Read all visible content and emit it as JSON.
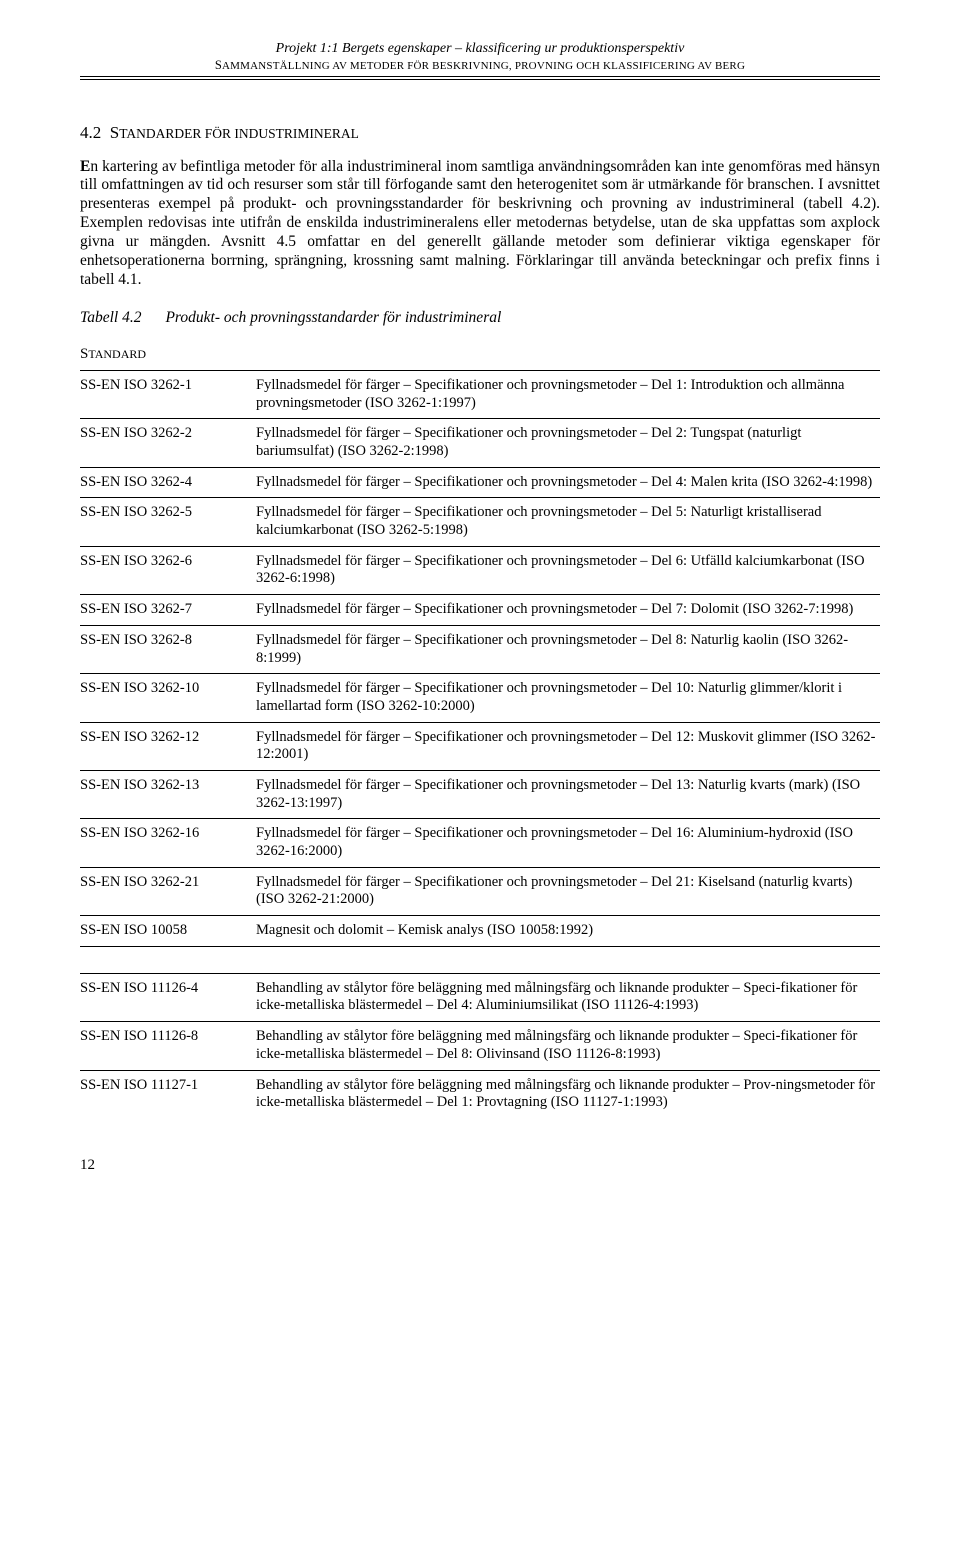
{
  "header": {
    "title": "Projekt 1:1 Bergets egenskaper – klassificering ur produktionsperspektiv",
    "subtitle_prefix": "S",
    "subtitle_rest": "AMMANSTÄLLNING AV METODER FÖR BESKRIVNING, PROVNING OCH KLASSIFICERING AV BERG"
  },
  "section": {
    "number": "4.2",
    "title_prefix": "S",
    "title_rest": "TANDARDER FÖR INDUSTRIMINERAL"
  },
  "paragraph": {
    "lead": "E",
    "text": "n kartering av befintliga metoder för alla industrimineral inom samtliga användningsområden kan inte genomföras med hänsyn till omfattningen av tid och resurser som står till förfogande samt den heterogenitet som är utmärkande för branschen. I avsnittet presenteras exempel på produkt- och provningsstandarder för beskrivning och provning av industrimineral (tabell 4.2). Exemplen redovisas inte utifrån de enskilda industrimineralens eller metodernas betydelse, utan de ska uppfattas som axplock givna ur mängden. Avsnitt 4.5 omfattar en del generellt gällande metoder som definierar viktiga egenskaper för enhetsoperationerna borrning, sprängning, krossning samt malning. Förklaringar till använda beteckningar och prefix finns i tabell 4.1."
  },
  "table_caption": {
    "label": "Tabell 4.2",
    "text": "Produkt- och provningsstandarder för industrimineral"
  },
  "standard_heading_prefix": "S",
  "standard_heading_rest": "TANDARD",
  "standards_group1": [
    {
      "code": "SS-EN ISO 3262-1",
      "desc": "Fyllnadsmedel för färger – Specifikationer och provningsmetoder – Del 1: Introduktion och allmänna provningsmetoder (ISO 3262-1:1997)"
    },
    {
      "code": "SS-EN ISO 3262-2",
      "desc": "Fyllnadsmedel för färger – Specifikationer och provningsmetoder – Del 2: Tungspat (naturligt bariumsulfat) (ISO 3262-2:1998)"
    },
    {
      "code": "SS-EN ISO 3262-4",
      "desc": "Fyllnadsmedel för färger – Specifikationer och provningsmetoder – Del 4: Malen krita (ISO 3262-4:1998)"
    },
    {
      "code": "SS-EN ISO 3262-5",
      "desc": "Fyllnadsmedel för färger – Specifikationer och provningsmetoder – Del 5: Naturligt kristalliserad kalciumkarbonat (ISO 3262-5:1998)"
    },
    {
      "code": "SS-EN ISO 3262-6",
      "desc": "Fyllnadsmedel för färger – Specifikationer och provningsmetoder – Del 6: Utfälld kalciumkarbonat (ISO 3262-6:1998)"
    },
    {
      "code": "SS-EN ISO 3262-7",
      "desc": "Fyllnadsmedel för färger – Specifikationer och provningsmetoder – Del 7: Dolomit (ISO 3262-7:1998)"
    },
    {
      "code": "SS-EN ISO 3262-8",
      "desc": "Fyllnadsmedel för färger – Specifikationer och provningsmetoder – Del 8: Naturlig kaolin (ISO 3262-8:1999)"
    },
    {
      "code": "SS-EN ISO 3262-10",
      "desc": "Fyllnadsmedel för färger – Specifikationer och provningsmetoder – Del 10: Naturlig glimmer/klorit i lamellartad form (ISO 3262-10:2000)"
    },
    {
      "code": "SS-EN ISO 3262-12",
      "desc": "Fyllnadsmedel för färger – Specifikationer och provningsmetoder – Del 12: Muskovit glimmer (ISO 3262-12:2001)"
    },
    {
      "code": "SS-EN ISO 3262-13",
      "desc": "Fyllnadsmedel för färger – Specifikationer och provningsmetoder – Del 13: Naturlig kvarts (mark) (ISO 3262-13:1997)"
    },
    {
      "code": "SS-EN ISO 3262-16",
      "desc": "Fyllnadsmedel för färger – Specifikationer och provningsmetoder – Del 16: Aluminium-hydroxid (ISO 3262-16:2000)"
    },
    {
      "code": "SS-EN ISO 3262-21",
      "desc": "Fyllnadsmedel för färger – Specifikationer och provningsmetoder – Del 21: Kiselsand (naturlig kvarts) (ISO 3262-21:2000)"
    },
    {
      "code": "SS-EN ISO 10058",
      "desc": "Magnesit och dolomit – Kemisk analys (ISO 10058:1992)"
    }
  ],
  "standards_group2": [
    {
      "code": "SS-EN ISO 11126-4",
      "desc": "Behandling av stålytor före beläggning med målningsfärg och liknande produkter – Speci-fikationer för icke-metalliska blästermedel – Del 4: Aluminiumsilikat (ISO 11126-4:1993)"
    },
    {
      "code": "SS-EN ISO 11126-8",
      "desc": "Behandling av stålytor före beläggning med målningsfärg och liknande produkter – Speci-fikationer för icke-metalliska blästermedel – Del 8: Olivinsand (ISO 11126-8:1993)"
    },
    {
      "code": "SS-EN ISO 11127-1",
      "desc": "Behandling av stålytor före beläggning med målningsfärg och liknande produkter – Prov-ningsmetoder för icke-metalliska blästermedel – Del 1: Provtagning (ISO 11127-1:1993)"
    }
  ],
  "page_number": "12"
}
